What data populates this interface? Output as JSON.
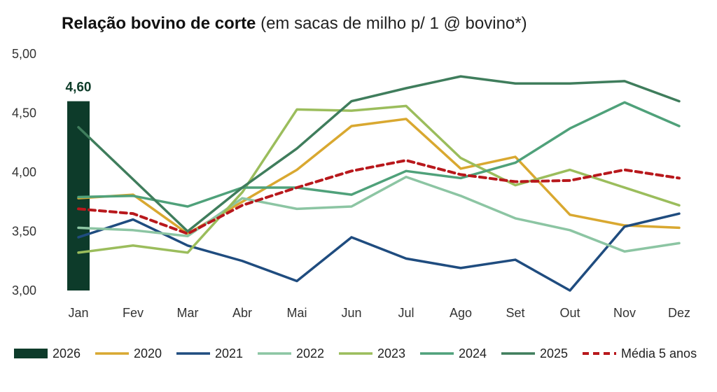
{
  "title": {
    "bold": "Relação bovino de corte",
    "sub": "(em sacas de milho p/ 1 @ bovino*)"
  },
  "chart_data": {
    "type": "line",
    "title": "Relação bovino de corte (em sacas de milho p/ 1 @ bovino*)",
    "categories": [
      "Jan",
      "Fev",
      "Mar",
      "Abr",
      "Mai",
      "Jun",
      "Jul",
      "Ago",
      "Set",
      "Out",
      "Nov",
      "Dez"
    ],
    "y_ticks": [
      "3,00",
      "3,50",
      "4,00",
      "4,50",
      "5,00"
    ],
    "ylim": [
      3.0,
      5.0
    ],
    "grid": false,
    "legend_position": "bottom",
    "bar_series": {
      "name": "2026",
      "color": "#0d3b2a",
      "values": [
        4.6
      ],
      "data_label": "4,60"
    },
    "series": [
      {
        "name": "2020",
        "color": "#d9a830",
        "dashed": false,
        "values": [
          3.78,
          3.81,
          3.48,
          3.75,
          4.02,
          4.39,
          4.45,
          4.03,
          4.13,
          3.64,
          3.55,
          3.53
        ]
      },
      {
        "name": "2021",
        "color": "#1f4c7f",
        "dashed": false,
        "values": [
          3.45,
          3.6,
          3.38,
          3.25,
          3.08,
          3.45,
          3.27,
          3.19,
          3.26,
          3.0,
          3.54,
          3.65
        ]
      },
      {
        "name": "2022",
        "color": "#8cc5a3",
        "dashed": false,
        "values": [
          3.53,
          3.51,
          3.46,
          3.78,
          3.69,
          3.71,
          3.96,
          3.8,
          3.61,
          3.51,
          3.33,
          3.4
        ]
      },
      {
        "name": "2023",
        "color": "#9bbd5c",
        "dashed": false,
        "values": [
          3.32,
          3.38,
          3.32,
          3.83,
          4.53,
          4.52,
          4.56,
          4.12,
          3.89,
          4.02,
          3.87,
          3.72
        ]
      },
      {
        "name": "2024",
        "color": "#4fa17a",
        "dashed": false,
        "values": [
          3.79,
          3.8,
          3.71,
          3.87,
          3.87,
          3.81,
          4.01,
          3.95,
          4.08,
          4.37,
          4.59,
          4.39
        ]
      },
      {
        "name": "2025",
        "color": "#3f7d5c",
        "dashed": false,
        "values": [
          4.38,
          null,
          3.5,
          3.87,
          4.2,
          4.6,
          4.71,
          4.81,
          4.75,
          4.75,
          4.77,
          4.6
        ]
      },
      {
        "name": "Média 5 anos",
        "color": "#b8181c",
        "dashed": true,
        "values": [
          3.69,
          3.65,
          3.48,
          3.72,
          3.87,
          4.01,
          4.1,
          3.98,
          3.92,
          3.93,
          4.02,
          3.95
        ]
      }
    ]
  }
}
